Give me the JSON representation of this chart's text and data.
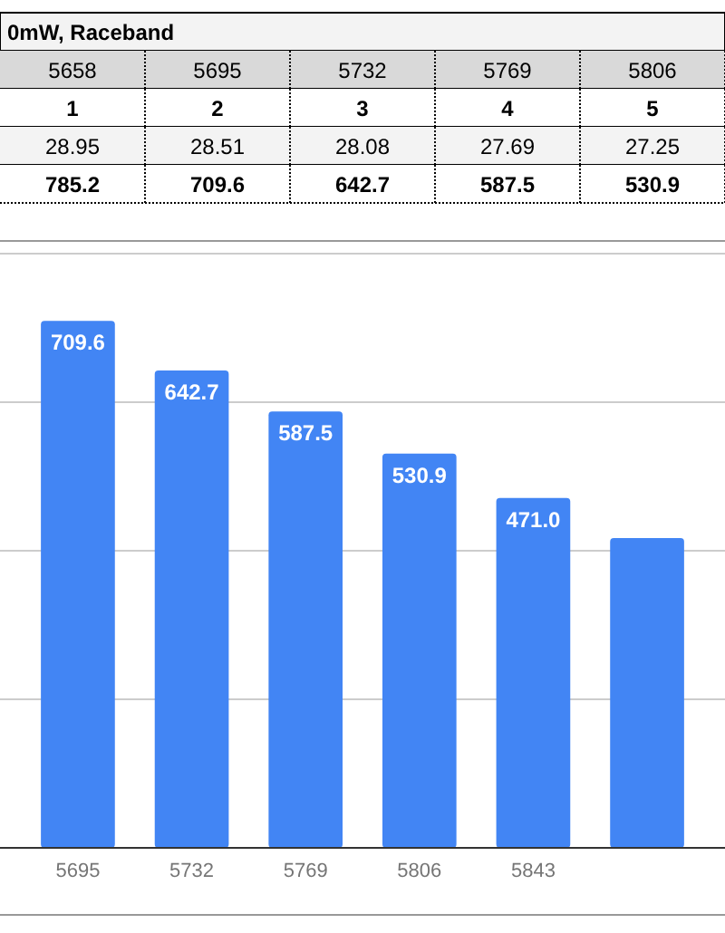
{
  "chart_data": [
    {
      "type": "heatmap",
      "title": "0mW, Raceband",
      "categories": [
        "5658",
        "5695",
        "5732",
        "5769",
        "5806"
      ],
      "y_categories": [
        null,
        null,
        null
      ],
      "cells": [
        [
          1,
          2,
          3,
          4,
          5
        ],
        [
          28.95,
          28.51,
          28.08,
          27.69,
          27.25
        ],
        [
          785.2,
          709.6,
          642.7,
          587.5,
          530.9
        ]
      ],
      "data_labels": true
    },
    {
      "type": "bar",
      "categories": [
        "5695",
        "5732",
        "5769",
        "5806",
        "5843",
        null
      ],
      "values": [
        709.6,
        642.7,
        587.5,
        530.9,
        471.0,
        417
      ],
      "value_labels": [
        "709.6",
        "642.7",
        "587.5",
        "530.9",
        "471.0",
        null
      ],
      "color": "#4285f4",
      "ylim": [
        0,
        800
      ],
      "yticks": [
        {
          "value": 0,
          "label": null
        },
        {
          "value": 200,
          "label": null
        },
        {
          "value": 400,
          "label": null
        },
        {
          "value": 600,
          "label": null
        },
        {
          "value": 800,
          "label": null
        }
      ],
      "grid": "y",
      "tick_labels": "x"
    }
  ]
}
